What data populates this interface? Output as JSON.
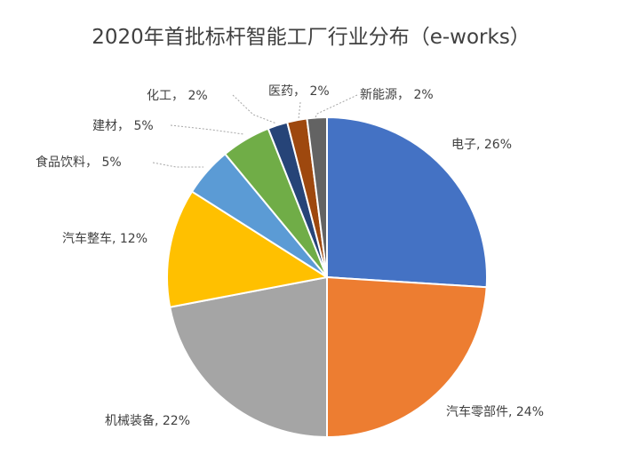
{
  "chart_data": {
    "type": "pie",
    "title": "2020年首批标杆智能工厂行业分布（e-works）",
    "slices": [
      {
        "label": "电子",
        "value": 26,
        "text": "电子, 26%",
        "color": "#4472c4"
      },
      {
        "label": "汽车零部件",
        "value": 24,
        "text": "汽车零部件, 24%",
        "color": "#ed7d31"
      },
      {
        "label": "机械装备",
        "value": 22,
        "text": "机械装备, 22%",
        "color": "#a5a5a5"
      },
      {
        "label": "汽车整车",
        "value": 12,
        "text": "汽车整车, 12%",
        "color": "#ffc000"
      },
      {
        "label": "食品饮料",
        "value": 5,
        "text": "食品饮料， 5%",
        "color": "#5b9bd5"
      },
      {
        "label": "建材",
        "value": 5,
        "text": "建材， 5%",
        "color": "#70ad47"
      },
      {
        "label": "化工",
        "value": 2,
        "text": "化工， 2%",
        "color": "#264478"
      },
      {
        "label": "医药",
        "value": 2,
        "text": "医药， 2%",
        "color": "#9e480e"
      },
      {
        "label": "新能源",
        "value": 2,
        "text": "新能源， 2%",
        "color": "#636363"
      }
    ]
  }
}
